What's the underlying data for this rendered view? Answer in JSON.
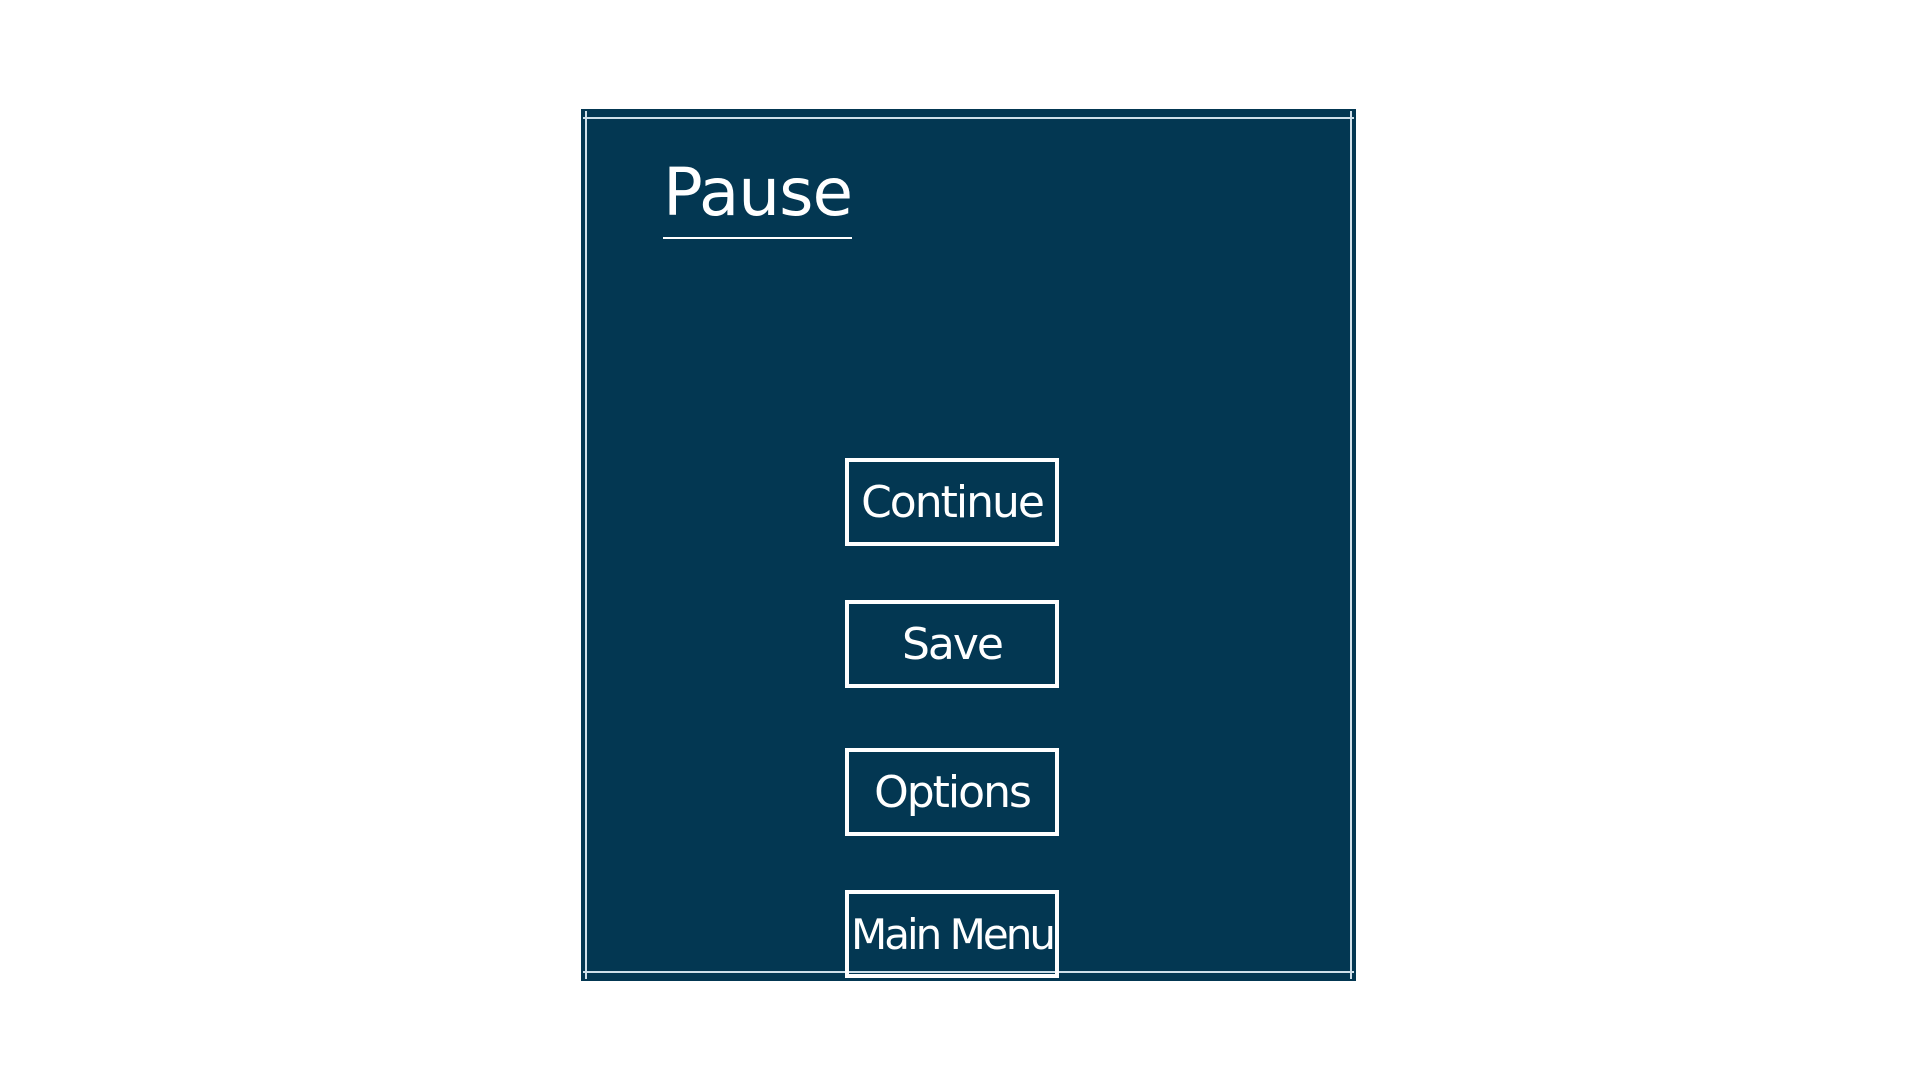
{
  "pause_menu": {
    "title": "Pause",
    "buttons": [
      {
        "label": "Continue"
      },
      {
        "label": "Save"
      },
      {
        "label": "Options"
      },
      {
        "label": "Main Menu"
      }
    ]
  },
  "colors": {
    "panel_background": "#033752",
    "foreground": "#ffffff",
    "page_background": "#ffffff"
  }
}
